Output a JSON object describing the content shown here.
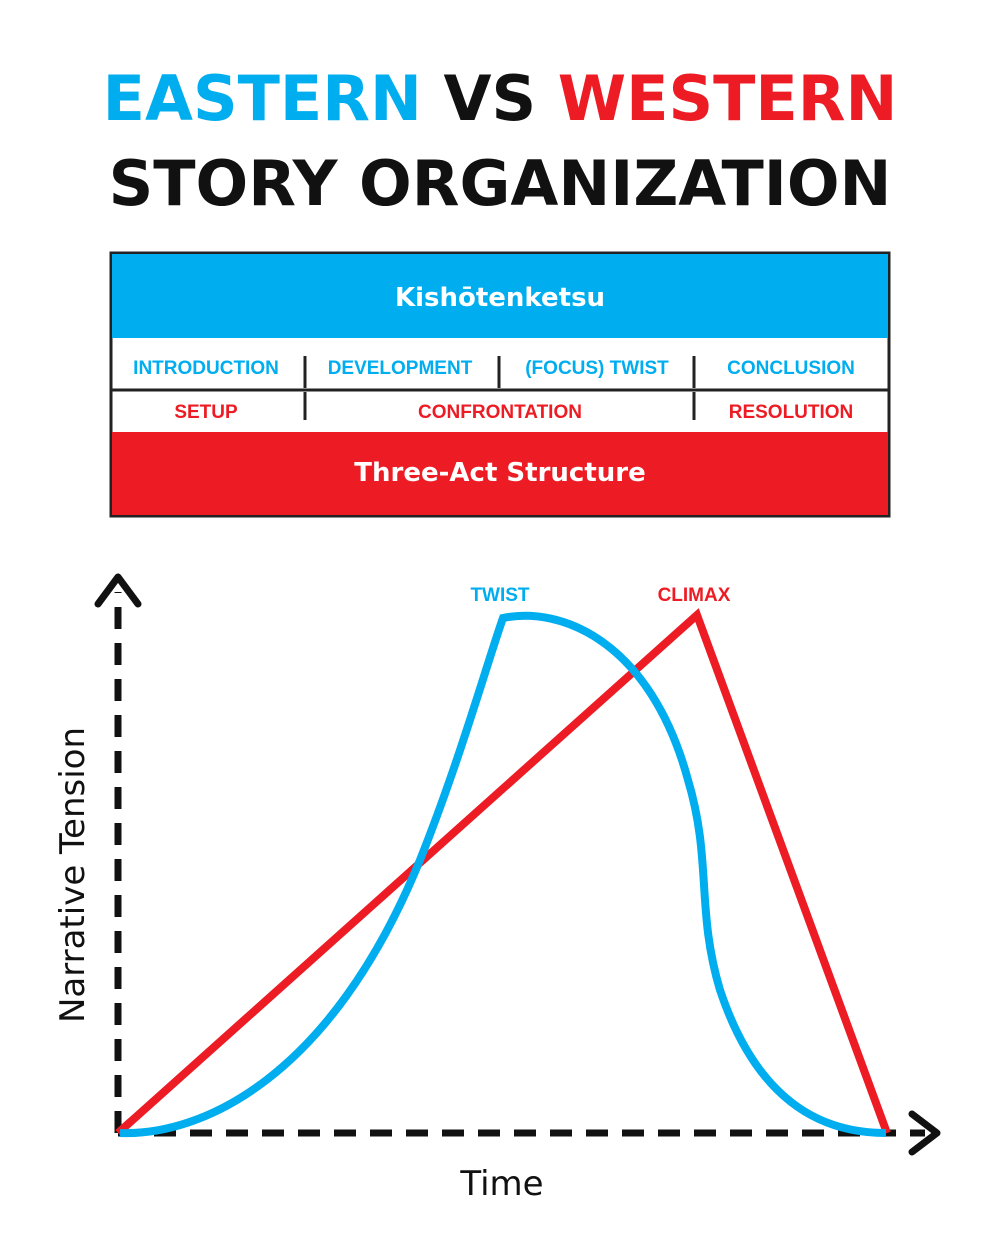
{
  "header": {
    "title_parts": [
      "EASTERN",
      "VS",
      "WESTERN"
    ],
    "subtitle": "STORY ORGANIZATION"
  },
  "table": {
    "kishotenketsu": {
      "title": "Kishōtenketsu",
      "stages": [
        "INTRODUCTION",
        "DEVELOPMENT",
        "(FOCUS) TWIST",
        "CONCLUSION"
      ]
    },
    "three_act": {
      "title": "Three-Act Structure",
      "stages": [
        "SETUP",
        "CONFRONTATION",
        "RESOLUTION"
      ]
    }
  },
  "graph": {
    "twist_label": "TWIST",
    "climax_label": "CLIMAX",
    "y_axis_label": "Narrative Tension",
    "x_axis_label": "Time"
  }
}
